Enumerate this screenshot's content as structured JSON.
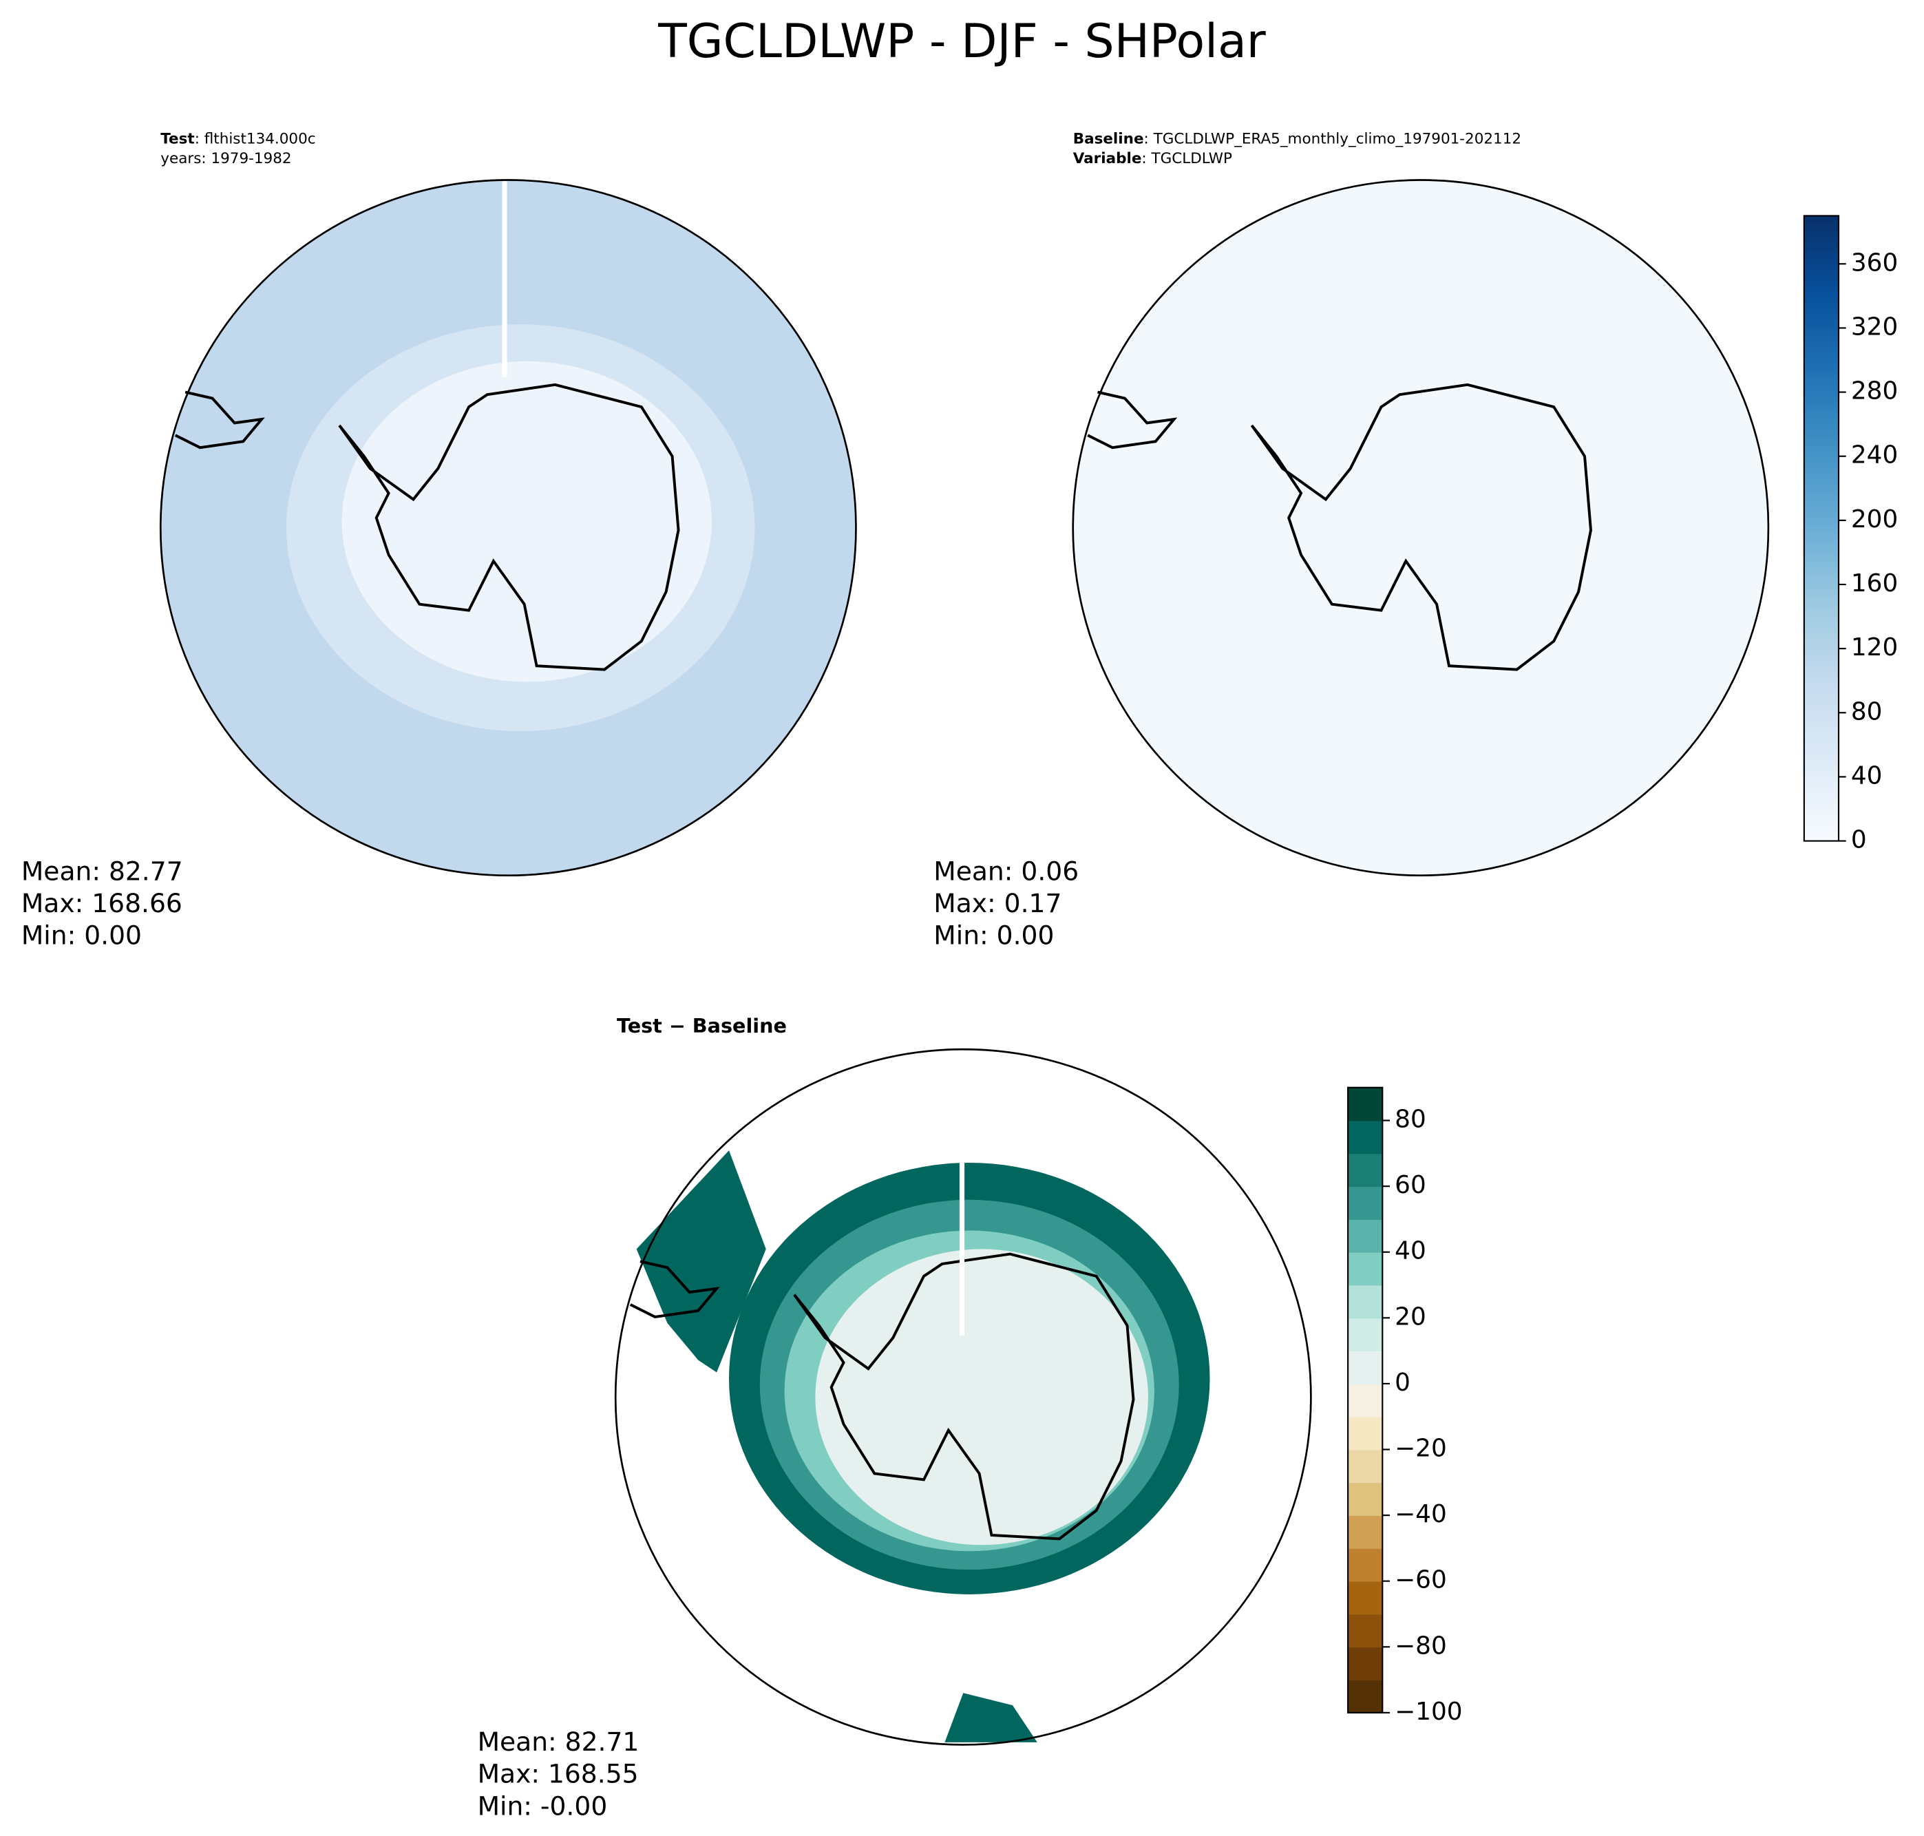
{
  "title": "TGCLDLWP - DJF - SHPolar",
  "chart_data": [
    {
      "type": "map",
      "header": [
        {
          "bold": "Test",
          "text": ": flthist134.000c"
        },
        {
          "text": "years: 1979-1982"
        }
      ],
      "stats": [
        "Mean: 82.77",
        "Max: 168.66",
        "Min:  0.00"
      ]
    },
    {
      "type": "map",
      "header": [
        {
          "bold": "Baseline",
          "text": ": TGCLDLWP_ERA5_monthly_climo_197901-202112"
        },
        {
          "bold": "Variable",
          "text": ": TGCLDLWP"
        }
      ],
      "stats": [
        "Mean:  0.06",
        "Max:  0.17",
        "Min:  0.00"
      ],
      "colorbar": {
        "ylim": [
          0,
          390
        ],
        "yticks": [
          0,
          40,
          80,
          120,
          160,
          200,
          240,
          280,
          320,
          360
        ],
        "colors": [
          "#f7fbff",
          "#deebf7",
          "#c6dbef",
          "#9ecae1",
          "#6baed6",
          "#4292c6",
          "#2171b5",
          "#08519c",
          "#08306b"
        ],
        "continuous": true
      }
    },
    {
      "type": "map",
      "title": "Test − Baseline",
      "stats": [
        "Mean: 82.71",
        "Max: 168.55",
        "Min: -0.00"
      ],
      "colorbar": {
        "ylim": [
          -100,
          90
        ],
        "yticks": [
          {
            "value": -100,
            "label": "−100"
          },
          {
            "value": -80,
            "label": "−80"
          },
          {
            "value": -60,
            "label": "−60"
          },
          {
            "value": -40,
            "label": "−40"
          },
          {
            "value": -20,
            "label": "−20"
          },
          0,
          20,
          40,
          60,
          80
        ],
        "colors": [
          "#543005",
          "#6f3d07",
          "#8c510a",
          "#a5640f",
          "#bf812d",
          "#cf9f53",
          "#dfc27d",
          "#ecd7a6",
          "#f6e8c3",
          "#f5f0e2",
          "#e6f1ef",
          "#d0ece7",
          "#b3e0d9",
          "#80cdc1",
          "#5ab4ac",
          "#35978f",
          "#1b7f76",
          "#01665e",
          "#014636"
        ],
        "continuous": false
      }
    }
  ]
}
